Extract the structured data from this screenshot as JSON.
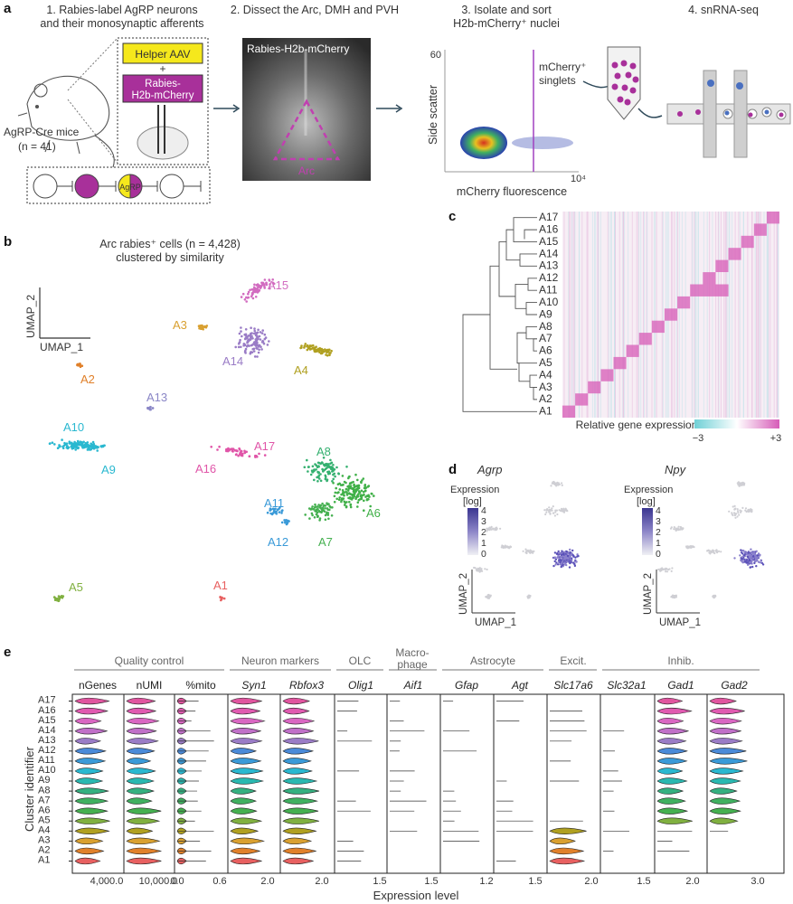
{
  "panel_letters": {
    "a": "a",
    "b": "b",
    "c": "c",
    "d": "d",
    "e": "e"
  },
  "panel_a": {
    "step1_line1": "1. Rabies-label AgRP neurons",
    "step1_line2": "and their monosynaptic afferents",
    "step2": "2. Dissect the Arc, DMH and PVH",
    "step3_line1": "3. Isolate and sort",
    "step3_line2": "H2b-mCherry⁺ nuclei",
    "step4": "4. snRNA-seq",
    "helper_aav": "Helper AAV",
    "plus": "+",
    "rabies_line1": "Rabies-",
    "rabies_line2": "H2b-mCherry",
    "mice_line1": "AgRP-Cre mice",
    "mice_line2": "(n = 41)",
    "agrp_label": "AgRP",
    "image_title": "Rabies-H2b-mCherry",
    "arc_label": "Arc",
    "facs_y_label": "Side scatter",
    "facs_x_label": "mCherry fluorescence",
    "facs_y_max": "60",
    "facs_x_max": "10⁴",
    "gate_label_line1": "mCherry⁺",
    "gate_label_line2": "singlets"
  },
  "panel_b": {
    "title_line1": "Arc rabies⁺ cells (n = 4,428)",
    "title_line2": "clustered by similarity",
    "axis_y": "UMAP_2",
    "axis_x": "UMAP_1",
    "cluster_labels": [
      "A15",
      "A3",
      "A14",
      "A4",
      "A2",
      "A13",
      "A10",
      "A9",
      "A17",
      "A8",
      "A16",
      "A11",
      "A12",
      "A7",
      "A6",
      "A5",
      "A1"
    ]
  },
  "panel_c": {
    "rows": [
      "A17",
      "A16",
      "A15",
      "A14",
      "A13",
      "A12",
      "A11",
      "A10",
      "A9",
      "A8",
      "A7",
      "A6",
      "A5",
      "A4",
      "A3",
      "A2",
      "A1"
    ],
    "legend_label": "Relative gene expression",
    "legend_min": "−3",
    "legend_max": "+3"
  },
  "panel_d": {
    "gene1": "Agrp",
    "gene2": "Npy",
    "legend_title_line1": "Expression",
    "legend_title_line2": "[log]",
    "legend1_ticks": [
      "4",
      "3",
      "2",
      "1",
      "0"
    ],
    "legend2_ticks": [
      "4",
      "3",
      "2",
      "1",
      "0"
    ],
    "axis_y": "UMAP_2",
    "axis_x": "UMAP_1"
  },
  "panel_e": {
    "groups": [
      "Quality control",
      "Neuron markers",
      "OLC",
      "Macro-",
      "phage",
      "Astrocyte",
      "Excit.",
      "Inhib."
    ],
    "columns": [
      "nGenes",
      "nUMI",
      "%mito",
      "Syn1",
      "Rbfox3",
      "Olig1",
      "Aif1",
      "Gfap",
      "Agt",
      "Slc17a6",
      "Slc32a1",
      "Gad1",
      "Gad2"
    ],
    "rows": [
      "A17",
      "A16",
      "A15",
      "A14",
      "A13",
      "A12",
      "A11",
      "A10",
      "A9",
      "A8",
      "A7",
      "A6",
      "A5",
      "A4",
      "A3",
      "A2",
      "A1"
    ],
    "ticks": [
      "4,000.0",
      "10,000.0",
      "0.0",
      "0.6",
      "2.0",
      "2.0",
      "1.5",
      "1.5",
      "1.2",
      "1.5",
      "2.0",
      "1.5",
      "2.0",
      "3.0"
    ],
    "y_label": "Cluster identifier",
    "x_label": "Expression level"
  },
  "colors": {
    "magenta": "#a8309a",
    "yellow": "#f5e81c",
    "purple_cluster": "#9a7cc6"
  }
}
